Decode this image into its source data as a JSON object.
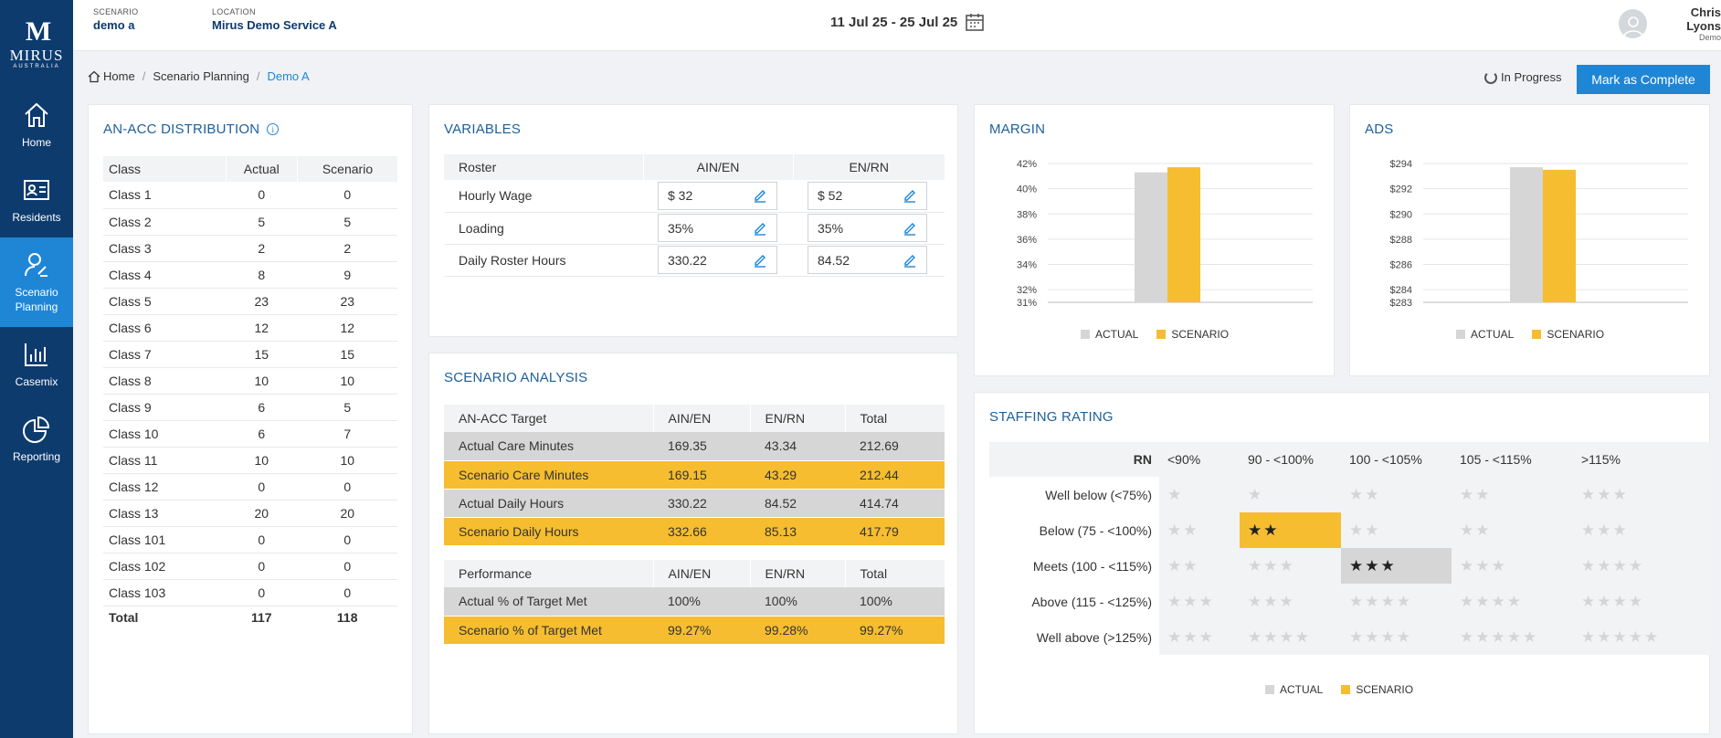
{
  "sidebar": {
    "logo_mark": "M",
    "logo_name": "MIRUS",
    "logo_sub": "AUSTRALIA",
    "items": [
      {
        "label": "Home",
        "icon": "home-icon"
      },
      {
        "label": "Residents",
        "icon": "id-card-icon"
      },
      {
        "label": "Scenario\nPlanning",
        "icon": "user-edit-icon"
      },
      {
        "label": "Casemix",
        "icon": "bar-chart-icon"
      },
      {
        "label": "Reporting",
        "icon": "pie-chart-icon"
      }
    ]
  },
  "topbar": {
    "scenario_label": "SCENARIO",
    "scenario_value": "demo a",
    "location_label": "LOCATION",
    "location_value": "Mirus Demo Service A",
    "date_range": "11 Jul 25 - 25 Jul 25",
    "user_name": "Chris Lyons",
    "user_role": "Demo"
  },
  "breadcrumb": {
    "home": "Home",
    "parent": "Scenario Planning",
    "current": "Demo A"
  },
  "status": "In Progress",
  "complete_button": "Mark as Complete",
  "colors": {
    "actual": "#d6d6d6",
    "scenario": "#f5bd2f",
    "accent": "#1f86d6",
    "sidebar": "#0d3b6e"
  },
  "anacc": {
    "title": "AN-ACC DISTRIBUTION",
    "headers": [
      "Class",
      "Actual",
      "Scenario"
    ],
    "rows": [
      [
        "Class 1",
        "0",
        "0"
      ],
      [
        "Class 2",
        "5",
        "5"
      ],
      [
        "Class 3",
        "2",
        "2"
      ],
      [
        "Class 4",
        "8",
        "9"
      ],
      [
        "Class 5",
        "23",
        "23"
      ],
      [
        "Class 6",
        "12",
        "12"
      ],
      [
        "Class 7",
        "15",
        "15"
      ],
      [
        "Class 8",
        "10",
        "10"
      ],
      [
        "Class 9",
        "6",
        "5"
      ],
      [
        "Class 10",
        "6",
        "7"
      ],
      [
        "Class 11",
        "10",
        "10"
      ],
      [
        "Class 12",
        "0",
        "0"
      ],
      [
        "Class 13",
        "20",
        "20"
      ],
      [
        "Class 101",
        "0",
        "0"
      ],
      [
        "Class 102",
        "0",
        "0"
      ],
      [
        "Class 103",
        "0",
        "0"
      ]
    ],
    "total": [
      "Total",
      "117",
      "118"
    ]
  },
  "variables": {
    "title": "VARIABLES",
    "headers": [
      "Roster",
      "AIN/EN",
      "EN/RN"
    ],
    "rows": [
      {
        "label": "Hourly Wage",
        "ain": "$ 32",
        "enrn": "$ 52"
      },
      {
        "label": "Loading",
        "ain": "35%",
        "enrn": "35%"
      },
      {
        "label": "Daily Roster Hours",
        "ain": "330.22",
        "enrn": "84.52"
      }
    ]
  },
  "analysis": {
    "title": "SCENARIO ANALYSIS",
    "target_headers": [
      "AN-ACC Target",
      "AIN/EN",
      "EN/RN",
      "Total"
    ],
    "target_rows": [
      [
        "Actual Care Minutes",
        "169.35",
        "43.34",
        "212.69"
      ],
      [
        "Scenario Care Minutes",
        "169.15",
        "43.29",
        "212.44"
      ],
      [
        "Actual Daily Hours",
        "330.22",
        "84.52",
        "414.74"
      ],
      [
        "Scenario Daily Hours",
        "332.66",
        "85.13",
        "417.79"
      ]
    ],
    "perf_headers": [
      "Performance",
      "AIN/EN",
      "EN/RN",
      "Total"
    ],
    "perf_rows": [
      [
        "Actual % of Target Met",
        "100%",
        "100%",
        "100%"
      ],
      [
        "Scenario % of Target Met",
        "99.27%",
        "99.28%",
        "99.27%"
      ]
    ]
  },
  "margin": {
    "title": "MARGIN"
  },
  "ads": {
    "title": "ADS"
  },
  "legend": {
    "actual": "ACTUAL",
    "scenario": "SCENARIO"
  },
  "chart_data": [
    {
      "type": "bar",
      "title": "MARGIN",
      "categories": [
        ""
      ],
      "series": [
        {
          "name": "ACTUAL",
          "values": [
            41.3
          ]
        },
        {
          "name": "SCENARIO",
          "values": [
            41.7
          ]
        }
      ],
      "yticks": [
        "31%",
        "32%",
        "34%",
        "36%",
        "38%",
        "40%",
        "42%"
      ],
      "ytick_values": [
        31,
        32,
        34,
        36,
        38,
        40,
        42
      ],
      "ylim": [
        31,
        42
      ],
      "legend": "bottom",
      "grid": true
    },
    {
      "type": "bar",
      "title": "ADS",
      "categories": [
        ""
      ],
      "series": [
        {
          "name": "ACTUAL",
          "values": [
            293.7
          ]
        },
        {
          "name": "SCENARIO",
          "values": [
            293.5
          ]
        }
      ],
      "yticks": [
        "$283",
        "$284",
        "$286",
        "$288",
        "$290",
        "$292",
        "$294"
      ],
      "ytick_values": [
        283,
        284,
        286,
        288,
        290,
        292,
        294
      ],
      "ylim": [
        283,
        294
      ],
      "legend": "bottom",
      "grid": true
    }
  ],
  "staffing": {
    "title": "STAFFING RATING",
    "corner": "RN",
    "columns": [
      "<90%",
      "90 - <100%",
      "100 - <105%",
      "105 - <115%",
      ">115%"
    ],
    "rows": [
      {
        "label": "Well below (<75%)",
        "stars": [
          "★",
          "★",
          "★★",
          "★★",
          "★★★"
        ]
      },
      {
        "label": "Below (75 - <100%)",
        "stars": [
          "★★",
          "★★",
          "★★",
          "★★",
          "★★★"
        ]
      },
      {
        "label": "Meets (100 - <115%)",
        "stars": [
          "★★",
          "★★★",
          "★★★",
          "★★★",
          "★★★★"
        ]
      },
      {
        "label": "Above (115 - <125%)",
        "stars": [
          "★★★",
          "★★★",
          "★★★★",
          "★★★★",
          "★★★★"
        ]
      },
      {
        "label": "Well above (>125%)",
        "stars": [
          "★★★",
          "★★★★",
          "★★★★",
          "★★★★★",
          "★★★★★"
        ]
      }
    ]
  }
}
